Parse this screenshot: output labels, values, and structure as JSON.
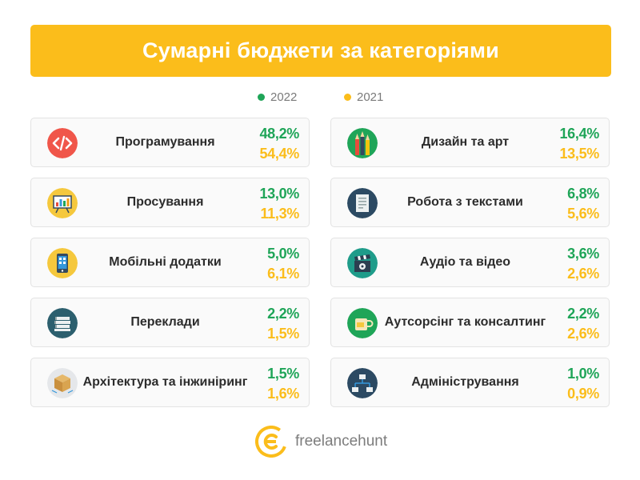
{
  "title": "Сумарні бюджети за категоріями",
  "legend": [
    {
      "label": "2022",
      "color": "#1fa558"
    },
    {
      "label": "2021",
      "color": "#fbbd1b"
    }
  ],
  "categories": [
    {
      "name": "Програмування",
      "v2022": "48,2%",
      "v2021": "54,4%",
      "icon": "code-icon"
    },
    {
      "name": "Дизайн та арт",
      "v2022": "16,4%",
      "v2021": "13,5%",
      "icon": "pencils-icon"
    },
    {
      "name": "Просування",
      "v2022": "13,0%",
      "v2021": "11,3%",
      "icon": "presentation-board-icon"
    },
    {
      "name": "Робота з текстами",
      "v2022": "6,8%",
      "v2021": "5,6%",
      "icon": "document-icon"
    },
    {
      "name": "Мобільні додатки",
      "v2022": "5,0%",
      "v2021": "6,1%",
      "icon": "smartphone-icon"
    },
    {
      "name": "Аудіо та відео",
      "v2022": "3,6%",
      "v2021": "2,6%",
      "icon": "clapperboard-icon"
    },
    {
      "name": "Переклади",
      "v2022": "2,2%",
      "v2021": "1,5%",
      "icon": "books-icon"
    },
    {
      "name": "Аутсорсінг та консалтинг",
      "v2022": "2,2%",
      "v2021": "2,6%",
      "icon": "cup-icon"
    },
    {
      "name": "Архітектура та інжиніринг",
      "v2022": "1,5%",
      "v2021": "1,6%",
      "icon": "box-icon"
    },
    {
      "name": "Адміністрування",
      "v2022": "1,0%",
      "v2021": "0,9%",
      "icon": "network-icon"
    }
  ],
  "footer": {
    "brand": "freelancehunt"
  }
}
